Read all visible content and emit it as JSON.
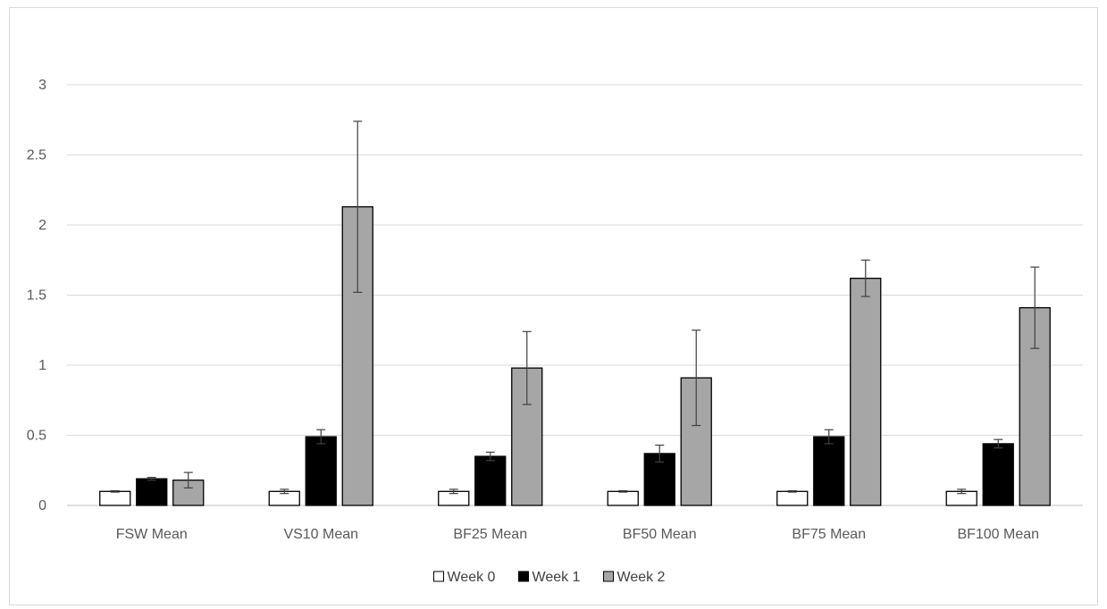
{
  "chart_data": {
    "type": "bar",
    "title": "",
    "xlabel": "",
    "ylabel": "",
    "categories": [
      "FSW Mean",
      "VS10 Mean",
      "BF25 Mean",
      "BF50 Mean",
      "BF75 Mean",
      "BF100 Mean"
    ],
    "series": [
      {
        "name": "Week 0",
        "color": "#ffffff",
        "values": [
          0.1,
          0.1,
          0.1,
          0.1,
          0.1,
          0.1
        ],
        "errors": [
          0.005,
          0.015,
          0.015,
          0.005,
          0.005,
          0.015
        ]
      },
      {
        "name": "Week 1",
        "color": "#000000",
        "values": [
          0.19,
          0.49,
          0.35,
          0.37,
          0.49,
          0.44
        ],
        "errors": [
          0.01,
          0.05,
          0.03,
          0.06,
          0.05,
          0.03
        ]
      },
      {
        "name": "Week 2",
        "color": "#a6a6a6",
        "values": [
          0.18,
          2.13,
          0.98,
          0.91,
          1.62,
          1.41
        ],
        "errors": [
          0.055,
          0.61,
          0.26,
          0.34,
          0.13,
          0.29
        ]
      }
    ],
    "ylim": [
      0,
      3
    ],
    "yticks": [
      "0",
      "0.5",
      "1",
      "1.5",
      "2",
      "2.5",
      "3"
    ],
    "grid": true,
    "legend": "bottom",
    "error_bars": true
  }
}
